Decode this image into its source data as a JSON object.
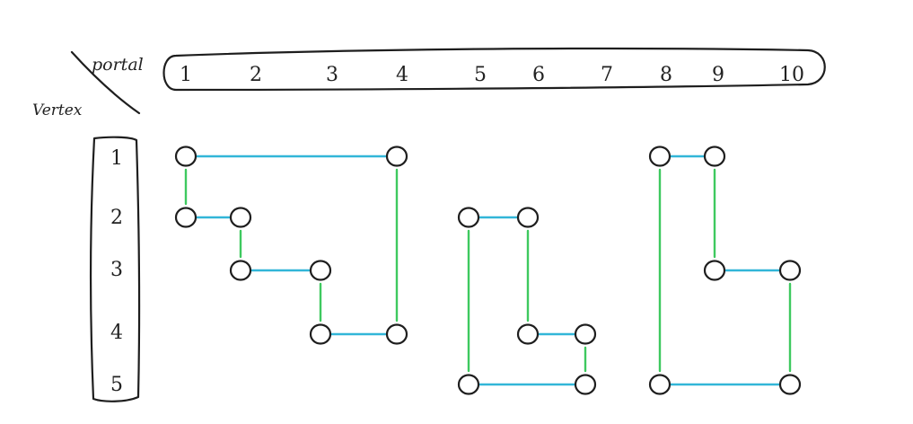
{
  "headers": {
    "portal_label": "portal",
    "vertex_label": "Vertex"
  },
  "portals": [
    "1",
    "2",
    "3",
    "4",
    "5",
    "6",
    "7",
    "8",
    "9",
    "10"
  ],
  "vertices": [
    "1",
    "2",
    "3",
    "4",
    "5"
  ],
  "colors": {
    "outline": "#1e1e1e",
    "horizontal_edge": "#32b6d8",
    "vertical_edge": "#3ec95f"
  },
  "nodes": [
    {
      "id": "n1",
      "portal": 1,
      "vertex": 1
    },
    {
      "id": "n2",
      "portal": 4,
      "vertex": 1
    },
    {
      "id": "n3",
      "portal": 1,
      "vertex": 2
    },
    {
      "id": "n4",
      "portal": 2,
      "vertex": 2
    },
    {
      "id": "n5",
      "portal": 2,
      "vertex": 3
    },
    {
      "id": "n6",
      "portal": 3,
      "vertex": 3
    },
    {
      "id": "n7",
      "portal": 3,
      "vertex": 4
    },
    {
      "id": "n8",
      "portal": 4,
      "vertex": 4
    },
    {
      "id": "n9",
      "portal": 5,
      "vertex": 2
    },
    {
      "id": "n10",
      "portal": 6,
      "vertex": 2
    },
    {
      "id": "n11",
      "portal": 6,
      "vertex": 4
    },
    {
      "id": "n12",
      "portal": 7,
      "vertex": 4
    },
    {
      "id": "n13",
      "portal": 5,
      "vertex": 5
    },
    {
      "id": "n14",
      "portal": 7,
      "vertex": 5
    },
    {
      "id": "n15",
      "portal": 8,
      "vertex": 1
    },
    {
      "id": "n16",
      "portal": 9,
      "vertex": 1
    },
    {
      "id": "n17",
      "portal": 9,
      "vertex": 3
    },
    {
      "id": "n18",
      "portal": 10,
      "vertex": 3
    },
    {
      "id": "n19",
      "portal": 8,
      "vertex": 5
    },
    {
      "id": "n20",
      "portal": 10,
      "vertex": 5
    }
  ],
  "edges": [
    {
      "from": "n1",
      "to": "n2",
      "type": "horizontal"
    },
    {
      "from": "n1",
      "to": "n3",
      "type": "vertical"
    },
    {
      "from": "n3",
      "to": "n4",
      "type": "horizontal"
    },
    {
      "from": "n4",
      "to": "n5",
      "type": "vertical"
    },
    {
      "from": "n5",
      "to": "n6",
      "type": "horizontal"
    },
    {
      "from": "n6",
      "to": "n7",
      "type": "vertical"
    },
    {
      "from": "n7",
      "to": "n8",
      "type": "horizontal"
    },
    {
      "from": "n2",
      "to": "n8",
      "type": "vertical"
    },
    {
      "from": "n9",
      "to": "n10",
      "type": "horizontal"
    },
    {
      "from": "n9",
      "to": "n13",
      "type": "vertical"
    },
    {
      "from": "n10",
      "to": "n11",
      "type": "vertical"
    },
    {
      "from": "n11",
      "to": "n12",
      "type": "horizontal"
    },
    {
      "from": "n12",
      "to": "n14",
      "type": "vertical"
    },
    {
      "from": "n13",
      "to": "n14",
      "type": "horizontal"
    },
    {
      "from": "n15",
      "to": "n16",
      "type": "horizontal"
    },
    {
      "from": "n15",
      "to": "n19",
      "type": "vertical"
    },
    {
      "from": "n16",
      "to": "n17",
      "type": "vertical"
    },
    {
      "from": "n17",
      "to": "n18",
      "type": "horizontal"
    },
    {
      "from": "n18",
      "to": "n20",
      "type": "vertical"
    },
    {
      "from": "n19",
      "to": "n20",
      "type": "horizontal"
    }
  ]
}
